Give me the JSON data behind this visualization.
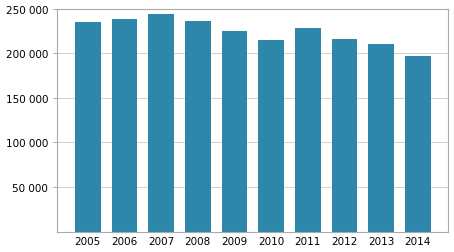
{
  "categories": [
    "2005",
    "2006",
    "2007",
    "2008",
    "2009",
    "2010",
    "2011",
    "2012",
    "2013",
    "2014"
  ],
  "values": [
    235000,
    238000,
    244000,
    236000,
    225000,
    215000,
    228000,
    216000,
    210000,
    197000
  ],
  "bar_color": "#2e86ab",
  "ylim": [
    0,
    250000
  ],
  "yticks": [
    50000,
    100000,
    150000,
    200000,
    250000
  ],
  "ytick_labels": [
    "50 000",
    "100 000",
    "150 000",
    "200 000",
    "250 000"
  ],
  "grid_color": "#d0d0d0",
  "background_color": "#ffffff",
  "bar_width": 0.7,
  "tick_fontsize": 7.5,
  "spine_color": "#aaaaaa"
}
